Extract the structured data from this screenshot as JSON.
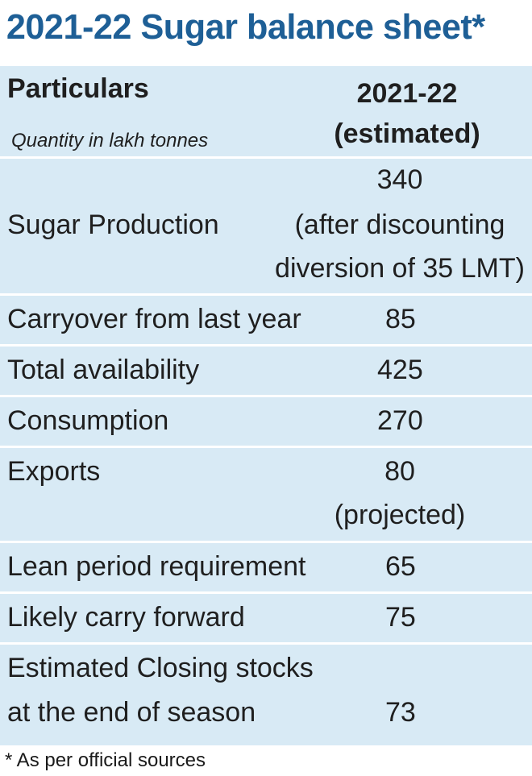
{
  "title": "2021-22 Sugar balance sheet*",
  "header": {
    "particulars": "Particulars",
    "subtitle": "Quantity in lakh tonnes",
    "year": "2021-22",
    "year_note": "(estimated)"
  },
  "rows": [
    {
      "label": [
        "Sugar Production"
      ],
      "value": [
        "340",
        "(after discounting",
        "diversion of 35 LMT)"
      ]
    },
    {
      "label": [
        "Carryover from last year"
      ],
      "value": [
        "85"
      ]
    },
    {
      "label": [
        "Total availability"
      ],
      "value": [
        "425"
      ]
    },
    {
      "label": [
        "Consumption"
      ],
      "value": [
        "270"
      ]
    },
    {
      "label": [
        "Exports"
      ],
      "value": [
        "80",
        "(projected)"
      ]
    },
    {
      "label": [
        "Lean period requirement"
      ],
      "value": [
        "65"
      ]
    },
    {
      "label": [
        "Likely carry forward"
      ],
      "value": [
        "75"
      ]
    },
    {
      "label": [
        "Estimated Closing stocks",
        "at the end of season"
      ],
      "value": [
        "73"
      ]
    }
  ],
  "footer": "* As per official sources"
}
